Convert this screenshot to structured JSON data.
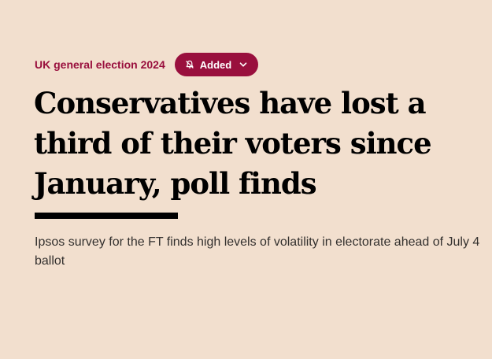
{
  "topic": {
    "label": "UK general election 2024"
  },
  "follow_button": {
    "label": "Added",
    "icon": "bell-off-icon",
    "chevron": "chevron-down-icon"
  },
  "article": {
    "headline": "Conservatives have lost a third of their voters since January, poll finds",
    "standfirst": "Ipsos survey for the FT finds high levels of volatility in electorate ahead of July 4 ballot"
  },
  "colors": {
    "background": "#F2DFCE",
    "accent": "#990F3D",
    "text": "#000000",
    "standfirst_text": "#33302E"
  }
}
